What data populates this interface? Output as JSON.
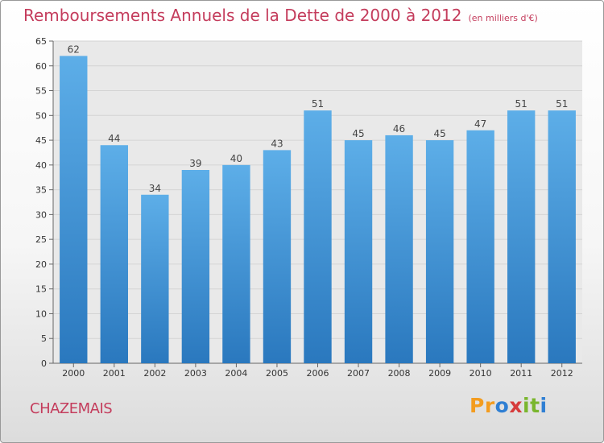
{
  "title": {
    "main": "Remboursements Annuels de la Dette de 2000 à 2012",
    "unit": "(en milliers d'€)"
  },
  "commune": "CHAZEMAIS",
  "logo": {
    "letters": [
      "P",
      "r",
      "o",
      "x",
      "i",
      "t",
      "i"
    ],
    "colors": [
      "#f39c1f",
      "#f39c1f",
      "#2f7fd3",
      "#d63b3b",
      "#7ab62e",
      "#7ab62e",
      "#2f7fd3"
    ]
  },
  "colors": {
    "title": "#c43c5c",
    "bar_top": "#5daee8",
    "bar_bottom": "#2a78be",
    "grid": "#d4d4d4",
    "plot_bg": "#e9e9e9"
  },
  "chart_data": {
    "type": "bar",
    "title": "Remboursements Annuels de la Dette de 2000 à 2012",
    "subtitle": "(en milliers d'€)",
    "xlabel": "",
    "ylabel": "",
    "categories": [
      "2000",
      "2001",
      "2002",
      "2003",
      "2004",
      "2005",
      "2006",
      "2007",
      "2008",
      "2009",
      "2010",
      "2011",
      "2012"
    ],
    "values": [
      62,
      44,
      34,
      39,
      40,
      43,
      51,
      45,
      46,
      45,
      47,
      51,
      51
    ],
    "ylim": [
      0,
      65
    ],
    "yticks": [
      0,
      5,
      10,
      15,
      20,
      25,
      30,
      35,
      40,
      45,
      50,
      55,
      60,
      65
    ],
    "grid": true,
    "legend": "none"
  }
}
